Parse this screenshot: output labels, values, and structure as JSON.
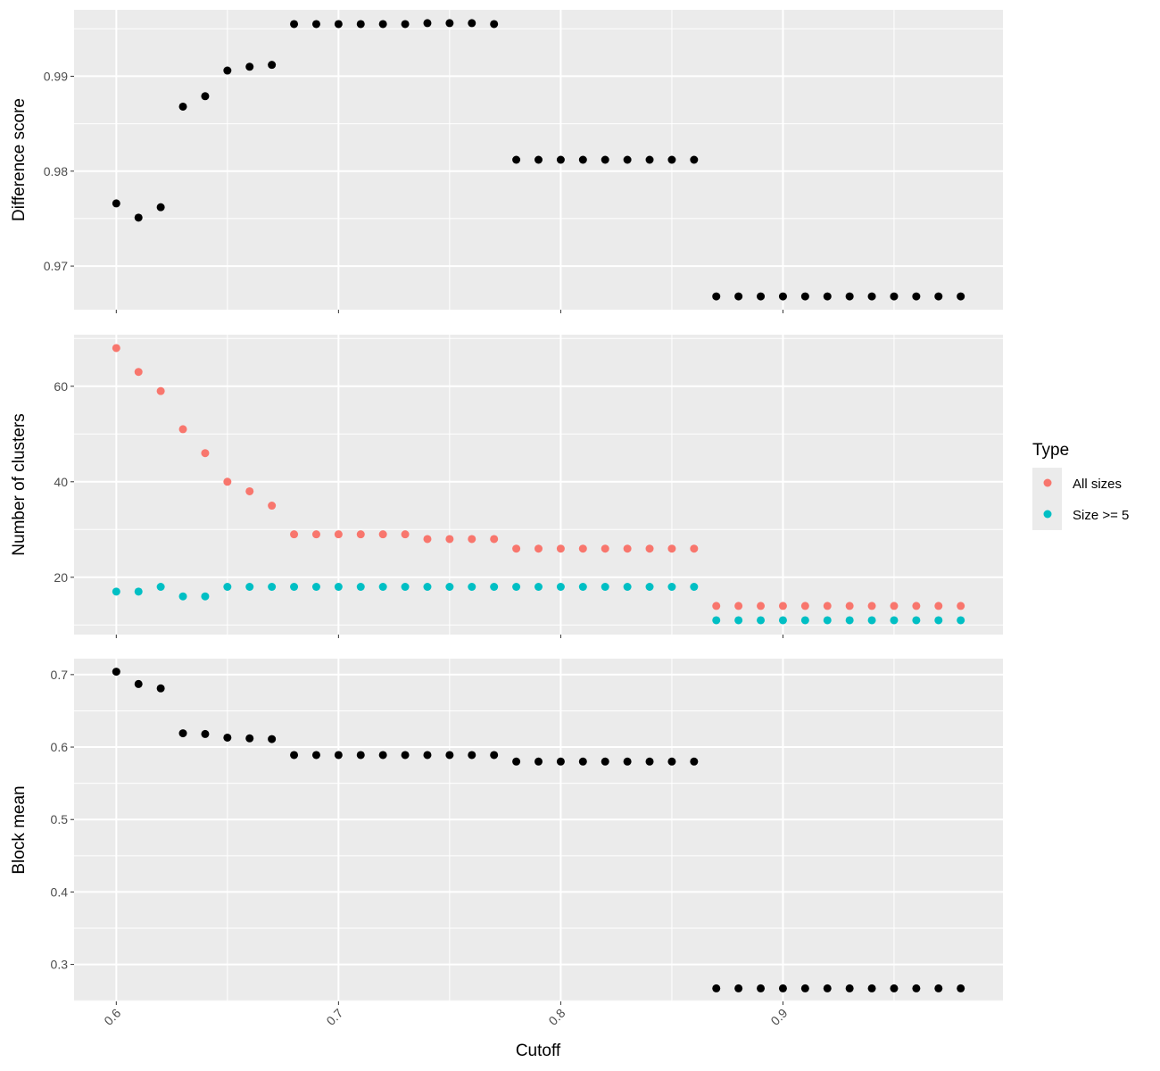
{
  "chart_data": [
    {
      "type": "scatter",
      "ylabel": "Difference score",
      "xlim": [
        0.581,
        0.999
      ],
      "ylim": [
        0.9654,
        0.997
      ],
      "x_ticks": [
        "0.6",
        "0.7",
        "0.8",
        "0.9"
      ],
      "x_tick_values": [
        0.6,
        0.7,
        0.8,
        0.9
      ],
      "y_ticks": [
        "0.97",
        "0.98",
        "0.99"
      ],
      "y_tick_values": [
        0.97,
        0.98,
        0.99
      ],
      "grid": true,
      "series": [
        {
          "color": "#000000",
          "x": [
            0.6,
            0.61,
            0.62,
            0.63,
            0.64,
            0.65,
            0.66,
            0.67,
            0.68,
            0.69,
            0.7,
            0.71,
            0.72,
            0.73,
            0.74,
            0.75,
            0.76,
            0.77,
            0.78,
            0.79,
            0.8,
            0.81,
            0.82,
            0.83,
            0.84,
            0.85,
            0.86,
            0.87,
            0.88,
            0.89,
            0.9,
            0.91,
            0.92,
            0.93,
            0.94,
            0.95,
            0.96,
            0.97,
            0.98
          ],
          "y": [
            0.9766,
            0.9751,
            0.9762,
            0.9868,
            0.9879,
            0.9906,
            0.991,
            0.9912,
            0.9955,
            0.9955,
            0.9955,
            0.9955,
            0.9955,
            0.9955,
            0.9956,
            0.9956,
            0.9956,
            0.9955,
            0.9812,
            0.9812,
            0.9812,
            0.9812,
            0.9812,
            0.9812,
            0.9812,
            0.9812,
            0.9812,
            0.9668,
            0.9668,
            0.9668,
            0.9668,
            0.9668,
            0.9668,
            0.9668,
            0.9668,
            0.9668,
            0.9668,
            0.9668,
            0.9668
          ]
        }
      ]
    },
    {
      "type": "scatter",
      "ylabel": "Number of clusters",
      "xlim": [
        0.581,
        0.999
      ],
      "ylim": [
        8.0,
        70.8
      ],
      "x_ticks": [
        "0.6",
        "0.7",
        "0.8",
        "0.9"
      ],
      "x_tick_values": [
        0.6,
        0.7,
        0.8,
        0.9
      ],
      "y_ticks": [
        "20",
        "40",
        "60"
      ],
      "y_tick_values": [
        20,
        40,
        60
      ],
      "grid": true,
      "legend": {
        "title": "Type",
        "placement": "right",
        "entries": [
          "All sizes",
          "Size >= 5"
        ]
      },
      "series": [
        {
          "name": "All sizes",
          "color": "#F8766D",
          "x": [
            0.6,
            0.61,
            0.62,
            0.63,
            0.64,
            0.65,
            0.66,
            0.67,
            0.68,
            0.69,
            0.7,
            0.71,
            0.72,
            0.73,
            0.74,
            0.75,
            0.76,
            0.77,
            0.78,
            0.79,
            0.8,
            0.81,
            0.82,
            0.83,
            0.84,
            0.85,
            0.86,
            0.87,
            0.88,
            0.89,
            0.9,
            0.91,
            0.92,
            0.93,
            0.94,
            0.95,
            0.96,
            0.97,
            0.98
          ],
          "y": [
            68,
            63,
            59,
            51,
            46,
            40,
            38,
            35,
            29,
            29,
            29,
            29,
            29,
            29,
            28,
            28,
            28,
            28,
            26,
            26,
            26,
            26,
            26,
            26,
            26,
            26,
            26,
            14,
            14,
            14,
            14,
            14,
            14,
            14,
            14,
            14,
            14,
            14,
            14
          ]
        },
        {
          "name": "Size >= 5",
          "color": "#00BFC4",
          "x": [
            0.6,
            0.61,
            0.62,
            0.63,
            0.64,
            0.65,
            0.66,
            0.67,
            0.68,
            0.69,
            0.7,
            0.71,
            0.72,
            0.73,
            0.74,
            0.75,
            0.76,
            0.77,
            0.78,
            0.79,
            0.8,
            0.81,
            0.82,
            0.83,
            0.84,
            0.85,
            0.86,
            0.87,
            0.88,
            0.89,
            0.9,
            0.91,
            0.92,
            0.93,
            0.94,
            0.95,
            0.96,
            0.97,
            0.98
          ],
          "y": [
            17,
            17,
            18,
            16,
            16,
            18,
            18,
            18,
            18,
            18,
            18,
            18,
            18,
            18,
            18,
            18,
            18,
            18,
            18,
            18,
            18,
            18,
            18,
            18,
            18,
            18,
            18,
            11,
            11,
            11,
            11,
            11,
            11,
            11,
            11,
            11,
            11,
            11,
            11
          ]
        }
      ]
    },
    {
      "type": "scatter",
      "ylabel": "Block mean",
      "xlabel": "Cutoff",
      "xlim": [
        0.581,
        0.999
      ],
      "ylim": [
        0.249,
        0.722
      ],
      "x_ticks": [
        "0.6",
        "0.7",
        "0.8",
        "0.9"
      ],
      "x_tick_values": [
        0.6,
        0.7,
        0.8,
        0.9
      ],
      "y_ticks": [
        "0.3",
        "0.4",
        "0.5",
        "0.6",
        "0.7"
      ],
      "y_tick_values": [
        0.3,
        0.4,
        0.5,
        0.6,
        0.7
      ],
      "grid": true,
      "series": [
        {
          "color": "#000000",
          "x": [
            0.6,
            0.61,
            0.62,
            0.63,
            0.64,
            0.65,
            0.66,
            0.67,
            0.68,
            0.69,
            0.7,
            0.71,
            0.72,
            0.73,
            0.74,
            0.75,
            0.76,
            0.77,
            0.78,
            0.79,
            0.8,
            0.81,
            0.82,
            0.83,
            0.84,
            0.85,
            0.86,
            0.87,
            0.88,
            0.89,
            0.9,
            0.91,
            0.92,
            0.93,
            0.94,
            0.95,
            0.96,
            0.97,
            0.98
          ],
          "y": [
            0.704,
            0.687,
            0.681,
            0.619,
            0.618,
            0.613,
            0.612,
            0.611,
            0.589,
            0.589,
            0.589,
            0.589,
            0.589,
            0.589,
            0.589,
            0.589,
            0.589,
            0.589,
            0.58,
            0.58,
            0.58,
            0.58,
            0.58,
            0.58,
            0.58,
            0.58,
            0.58,
            0.267,
            0.267,
            0.267,
            0.267,
            0.267,
            0.267,
            0.267,
            0.267,
            0.267,
            0.267,
            0.267,
            0.267
          ]
        }
      ]
    }
  ]
}
